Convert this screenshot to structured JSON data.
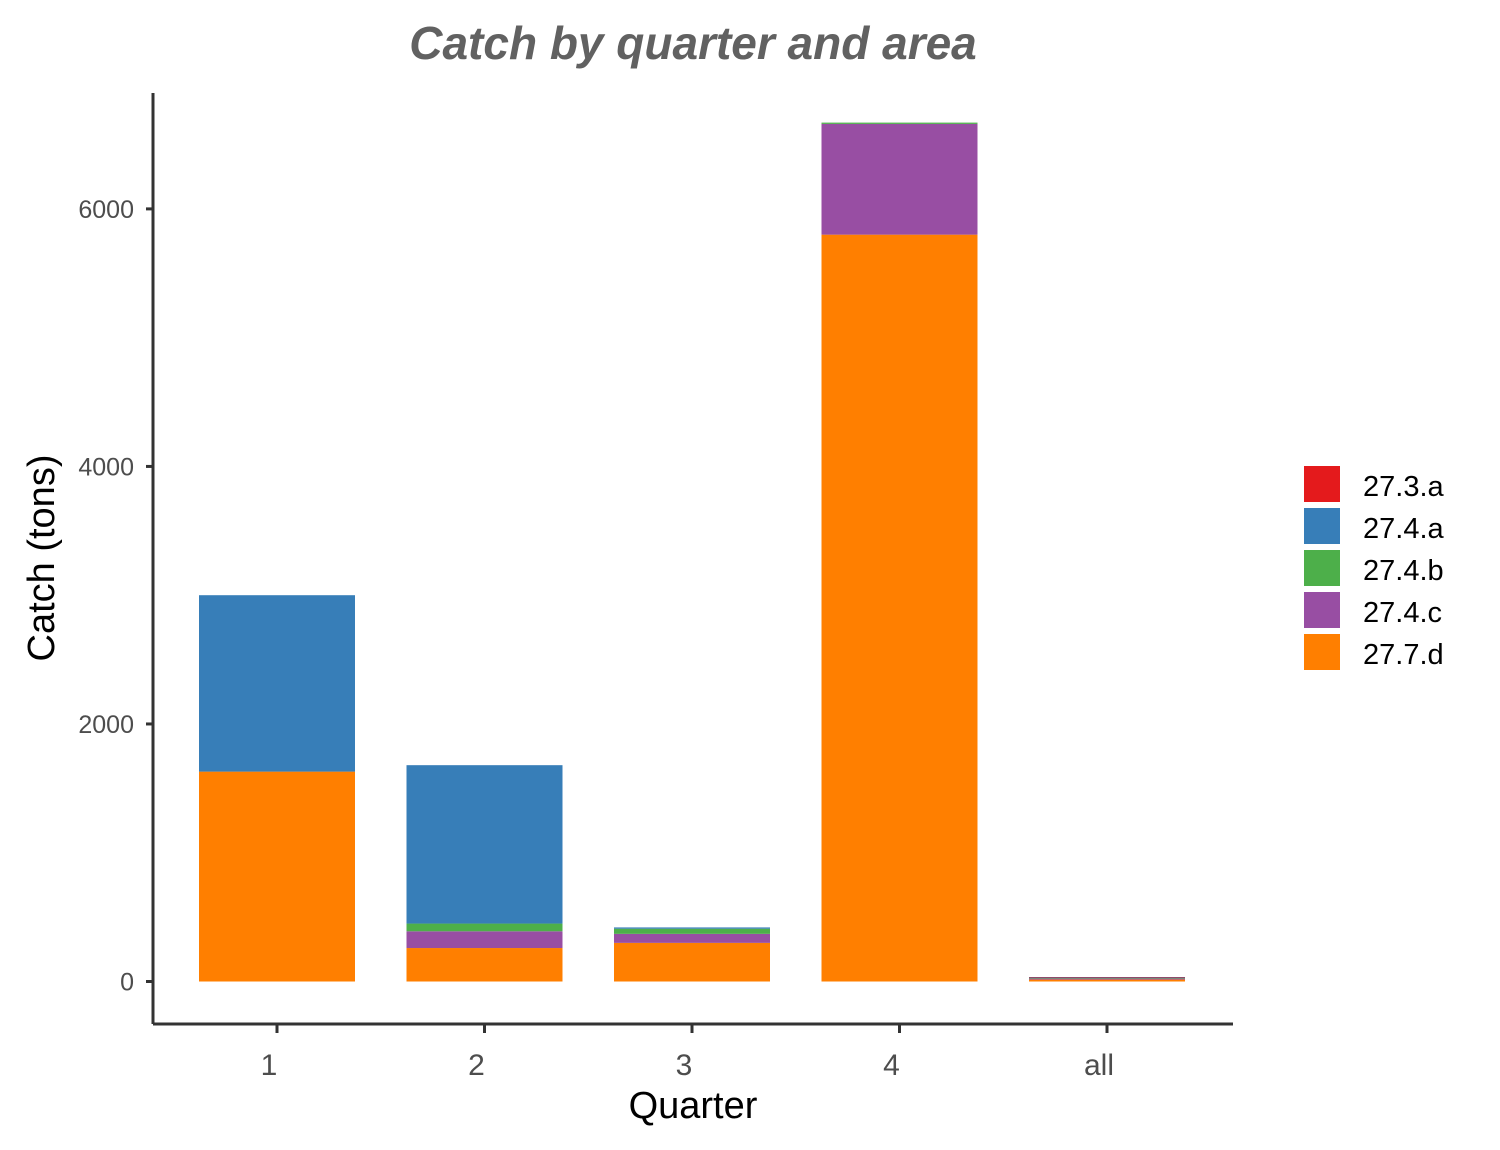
{
  "chart_data": {
    "type": "bar",
    "stacked": true,
    "title": "Catch by quarter and area",
    "xlabel": "Quarter",
    "ylabel": "Catch (tons)",
    "categories": [
      "1",
      "2",
      "3",
      "4",
      "all"
    ],
    "y_ticks": [
      0,
      2000,
      4000,
      6000
    ],
    "ylim": [
      -330,
      6900
    ],
    "grid": false,
    "legend_position": "right",
    "series": [
      {
        "name": "27.7.d",
        "color": "#FF7F00",
        "values": [
          1630,
          260,
          300,
          5800,
          15
        ]
      },
      {
        "name": "27.4.c",
        "color": "#984EA3",
        "values": [
          0,
          130,
          70,
          860,
          8
        ]
      },
      {
        "name": "27.4.b",
        "color": "#4DAF4A",
        "values": [
          0,
          60,
          40,
          10,
          4
        ]
      },
      {
        "name": "27.4.a",
        "color": "#377EB8",
        "values": [
          1370,
          1230,
          10,
          0,
          5
        ]
      },
      {
        "name": "27.3.a",
        "color": "#E41A1C",
        "values": [
          0,
          0,
          0,
          0,
          3
        ]
      }
    ],
    "legend_order": [
      "27.3.a",
      "27.4.a",
      "27.4.b",
      "27.4.c",
      "27.7.d"
    ]
  }
}
